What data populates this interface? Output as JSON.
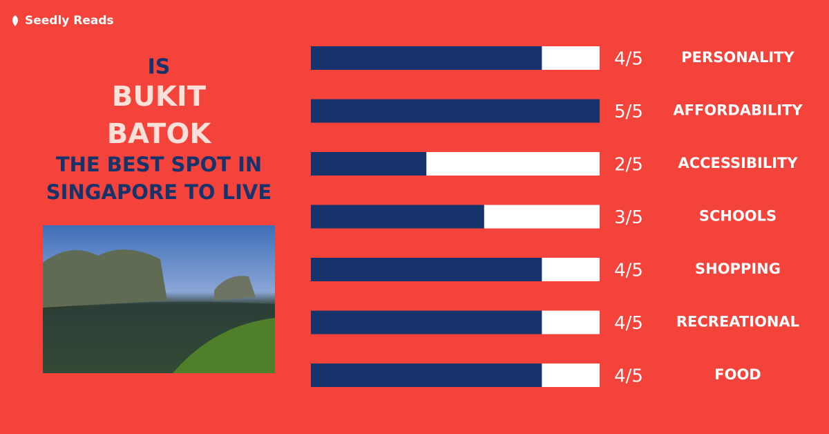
{
  "brand": "Seedly Reads",
  "headline": {
    "line1": "IS",
    "line2": "BUKIT",
    "line3": "BATOK",
    "line4": "THE BEST SPOT IN",
    "line5": "SINGAPORE TO LIVE"
  },
  "chart_data": {
    "type": "bar",
    "orientation": "horizontal",
    "categories": [
      "PERSONALITY",
      "AFFORDABILITY",
      "ACCESSIBILITY",
      "SCHOOLS",
      "SHOPPING",
      "RECREATIONAL",
      "FOOD"
    ],
    "values": [
      4,
      5,
      2,
      3,
      4,
      4,
      4
    ],
    "value_labels": [
      "4/5",
      "5/5",
      "2/5",
      "3/5",
      "4/5",
      "4/5",
      "4/5"
    ],
    "xlim": [
      0,
      5
    ],
    "color": "#17336b",
    "track_color": "#ffffff"
  }
}
